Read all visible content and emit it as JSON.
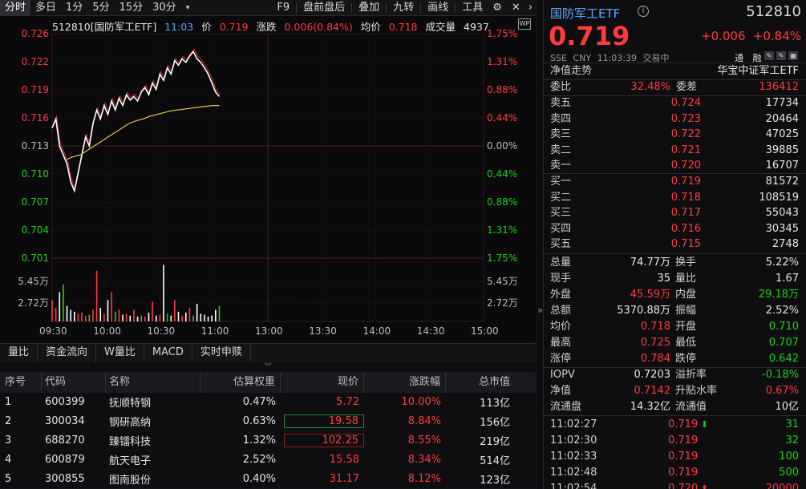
{
  "toolbar": {
    "left_tabs": [
      "分时",
      "多日",
      "1分",
      "5分",
      "15分",
      "30分"
    ],
    "right_items": [
      "F9",
      "盘前盘后",
      "叠加",
      "九转",
      "画线",
      "工具"
    ]
  },
  "chart_header": {
    "security": "512810[国防军工ETF]",
    "time": "11:03",
    "price_label": "价",
    "price": "0.719",
    "change_label": "涨跌",
    "change": "0.006(0.84%)",
    "avg_label": "均价",
    "avg": "0.718",
    "volume_label": "成交量",
    "volume": "4937",
    "icon_label": "WP"
  },
  "chart_data": {
    "type": "line",
    "price_ticks": [
      "0.726",
      "0.722",
      "0.719",
      "0.716",
      "0.713",
      "0.710",
      "0.707",
      "0.704",
      "0.701"
    ],
    "pct_ticks": [
      "1.75%",
      "1.31%",
      "0.88%",
      "0.44%",
      "0.00%",
      "0.44%",
      "0.88%",
      "1.31%",
      "1.75%"
    ],
    "vol_ticks": [
      "5.45万",
      "2.72万"
    ],
    "time_ticks": [
      "09:30",
      "10:00",
      "10:30",
      "11:00",
      "13:00",
      "13:30",
      "14:00",
      "14:30",
      "15:00"
    ],
    "ylim": [
      0.701,
      0.726
    ],
    "prev_close": 0.713,
    "price_series": [
      0.7155,
      0.7165,
      0.7135,
      0.7125,
      0.7115,
      0.7095,
      0.7085,
      0.7105,
      0.7125,
      0.7145,
      0.7135,
      0.716,
      0.7175,
      0.7165,
      0.718,
      0.717,
      0.7185,
      0.7175,
      0.7188,
      0.718,
      0.7192,
      0.7186,
      0.719,
      0.7185,
      0.7195,
      0.72,
      0.7192,
      0.7205,
      0.7198,
      0.7215,
      0.7208,
      0.7222,
      0.7215,
      0.723,
      0.7225,
      0.7232,
      0.7228,
      0.7235,
      0.724,
      0.7232,
      0.7228,
      0.7222,
      0.7215,
      0.7205,
      0.7195,
      0.719
    ],
    "avg_series": [
      0.712,
      0.7123,
      0.7125,
      0.713,
      0.7135,
      0.714,
      0.7145,
      0.715,
      0.7155,
      0.716,
      0.7163,
      0.7165,
      0.7168,
      0.717,
      0.7172,
      0.7174,
      0.7175,
      0.7176,
      0.7177,
      0.7178,
      0.7179,
      0.718,
      0.718
    ],
    "volumes": [
      22000,
      14000,
      30000,
      38000,
      16000,
      12000,
      10000,
      8000,
      9000,
      6000,
      7000,
      12000,
      52000,
      14000,
      8000,
      22000,
      30000,
      10000,
      12000,
      7000,
      8000,
      6000,
      12000,
      5000,
      6000,
      5000,
      9000,
      20000,
      6000,
      7000,
      58000,
      8000,
      6000,
      22000,
      10000,
      6000,
      9000,
      14000,
      6000,
      18000,
      8000,
      7000,
      5000,
      6000,
      12000,
      16000
    ],
    "vol_max": 60000
  },
  "indicator_tabs": [
    "量比",
    "资金流向",
    "W量比",
    "MACD",
    "实时申赎"
  ],
  "holdings": {
    "headers": [
      "序号",
      "代码",
      "名称",
      "估算权重",
      "现价",
      "涨跌幅",
      "总市值"
    ],
    "rows": [
      {
        "no": "1",
        "code": "600399",
        "name": "抚顺特钢",
        "weight": "0.47%",
        "price": "5.72",
        "chg": "10.00%",
        "cap": "113亿"
      },
      {
        "no": "2",
        "code": "300034",
        "name": "钢研高纳",
        "weight": "0.63%",
        "price": "19.58",
        "chg": "8.84%",
        "cap": "156亿"
      },
      {
        "no": "3",
        "code": "688270",
        "name": "臻镭科技",
        "weight": "1.32%",
        "price": "102.25",
        "chg": "8.55%",
        "cap": "219亿"
      },
      {
        "no": "4",
        "code": "600879",
        "name": "航天电子",
        "weight": "2.52%",
        "price": "15.58",
        "chg": "8.34%",
        "cap": "514亿"
      },
      {
        "no": "5",
        "code": "300855",
        "name": "图南股份",
        "weight": "0.40%",
        "price": "31.17",
        "chg": "8.12%",
        "cap": "123亿"
      }
    ]
  },
  "quote": {
    "name": "国防军工ETF",
    "code": "512810",
    "price": "0.719",
    "change": "+0.006",
    "change_pct": "+0.84%",
    "exchange": "SSE",
    "currency": "CNY",
    "time": "11:03:39",
    "status": "交易中",
    "tong": "通",
    "rong": "融",
    "nav_trend": "净值走势",
    "index_name": "华宝中证军工ETF",
    "weibi_label": "委比",
    "weibi": "32.48%",
    "weicha_label": "委差",
    "weicha": "136412"
  },
  "order_book": {
    "asks": [
      {
        "label": "卖五",
        "price": "0.724",
        "vol": "17734"
      },
      {
        "label": "卖四",
        "price": "0.723",
        "vol": "20464"
      },
      {
        "label": "卖三",
        "price": "0.722",
        "vol": "47025"
      },
      {
        "label": "卖二",
        "price": "0.721",
        "vol": "39885"
      },
      {
        "label": "卖一",
        "price": "0.720",
        "vol": "16707"
      }
    ],
    "bids": [
      {
        "label": "买一",
        "price": "0.719",
        "vol": "81572"
      },
      {
        "label": "买二",
        "price": "0.718",
        "vol": "108519"
      },
      {
        "label": "买三",
        "price": "0.717",
        "vol": "55043"
      },
      {
        "label": "买四",
        "price": "0.716",
        "vol": "30345"
      },
      {
        "label": "买五",
        "price": "0.715",
        "vol": "2748"
      }
    ]
  },
  "stats": [
    {
      "l1": "总量",
      "v1": "74.77万",
      "c1": "white",
      "l2": "换手",
      "v2": "5.22%",
      "c2": "white"
    },
    {
      "l1": "现手",
      "v1": "35",
      "c1": "white",
      "l2": "量比",
      "v2": "1.67",
      "c2": "white"
    },
    {
      "l1": "外盘",
      "v1": "45.59万",
      "c1": "red",
      "l2": "内盘",
      "v2": "29.18万",
      "c2": "green"
    },
    {
      "l1": "总额",
      "v1": "5370.88万",
      "c1": "white",
      "l2": "振幅",
      "v2": "2.52%",
      "c2": "white"
    },
    {
      "l1": "均价",
      "v1": "0.718",
      "c1": "red",
      "l2": "开盘",
      "v2": "0.710",
      "c2": "green"
    },
    {
      "l1": "最高",
      "v1": "0.725",
      "c1": "red",
      "l2": "最低",
      "v2": "0.707",
      "c2": "green"
    },
    {
      "l1": "涨停",
      "v1": "0.784",
      "c1": "red",
      "l2": "跌停",
      "v2": "0.642",
      "c2": "green"
    }
  ],
  "etf_stats": [
    {
      "l1": "IOPV",
      "v1": "0.7203",
      "c1": "white",
      "l2": "溢折率",
      "v2": "-0.18%",
      "c2": "green"
    },
    {
      "l1": "净值",
      "v1": "0.7142",
      "c1": "red",
      "l2": "升贴水率",
      "v2": "0.67%",
      "c2": "red"
    },
    {
      "l1": "流通盘",
      "v1": "14.32亿",
      "c1": "white",
      "l2": "流通值",
      "v2": "10亿",
      "c2": "white"
    }
  ],
  "trades": [
    {
      "time": "11:02:27",
      "price": "0.719",
      "arrow": "down",
      "vol": "31",
      "color": "green"
    },
    {
      "time": "11:02:30",
      "price": "0.719",
      "arrow": "",
      "vol": "32",
      "color": "green"
    },
    {
      "time": "11:02:33",
      "price": "0.719",
      "arrow": "",
      "vol": "100",
      "color": "green"
    },
    {
      "time": "11:02:48",
      "price": "0.719",
      "arrow": "",
      "vol": "500",
      "color": "green"
    },
    {
      "time": "11:02:54",
      "price": "0.720",
      "arrow": "up",
      "vol": "20000",
      "color": "red"
    }
  ]
}
